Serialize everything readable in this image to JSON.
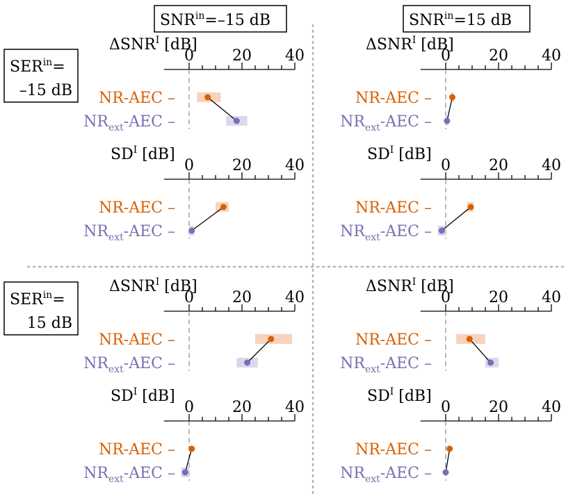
{
  "colors": {
    "nr_aec": "#d95f02",
    "nr_aec_band": "#f8d3bc",
    "nr_ext_aec": "#7570b3",
    "nr_ext_aec_band": "#d9d8ee",
    "separator": "#b3b3b3",
    "zero_line": "#888888"
  },
  "columns": [
    {
      "snr_prefix": "SNR",
      "snr_sup": "in",
      "snr_suffix": "=–15 dB"
    },
    {
      "snr_prefix": "SNR",
      "snr_sup": "in",
      "snr_suffix": "=15 dB"
    }
  ],
  "rows": [
    {
      "ser_prefix": "SER",
      "ser_sup": "in",
      "ser_eq": "=",
      "ser_value": "–15 dB"
    },
    {
      "ser_prefix": "SER",
      "ser_sup": "in",
      "ser_eq": "=",
      "ser_value": "15 dB"
    }
  ],
  "labels": {
    "dsnr_delta": "Δ",
    "dsnr_main": "SNR",
    "dsnr_sup": "I",
    "dsnr_unit": " [dB]",
    "sd_main": "SD",
    "sd_sup": "I",
    "sd_unit": " [dB]",
    "nr_aec": "NR-AEC –",
    "nr_ext_main": "NR",
    "nr_ext_sub": "ext",
    "nr_ext_rest": "-AEC –"
  },
  "chart_data": [
    {
      "type": "scatter",
      "row": "SER=–15 dB",
      "column": "SNR=–15 dB",
      "metrics": [
        {
          "metric": "ΔSNR^I [dB]",
          "xlim": [
            -5,
            40
          ],
          "ticks": [
            0,
            20,
            40
          ],
          "series": [
            {
              "name": "NR-AEC",
              "value": 7,
              "range": [
                3,
                12
              ]
            },
            {
              "name": "NR_ext-AEC",
              "value": 18,
              "range": [
                14,
                22
              ]
            }
          ]
        },
        {
          "metric": "SD^I [dB]",
          "xlim": [
            -5,
            40
          ],
          "ticks": [
            0,
            20,
            40
          ],
          "series": [
            {
              "name": "NR-AEC",
              "value": 13,
              "range": [
                10,
                15
              ]
            },
            {
              "name": "NR_ext-AEC",
              "value": 1,
              "range": [
                0,
                2
              ]
            }
          ]
        }
      ]
    },
    {
      "type": "scatter",
      "row": "SER=–15 dB",
      "column": "SNR=15 dB",
      "metrics": [
        {
          "metric": "ΔSNR^I [dB]",
          "xlim": [
            -5,
            40
          ],
          "ticks": [
            0,
            20,
            40
          ],
          "series": [
            {
              "name": "NR-AEC",
              "value": 2.5,
              "range": [
                2,
                3
              ]
            },
            {
              "name": "NR_ext-AEC",
              "value": 0.5,
              "range": [
                0,
                1
              ]
            }
          ]
        },
        {
          "metric": "SD^I [dB]",
          "xlim": [
            -5,
            40
          ],
          "ticks": [
            0,
            20,
            40
          ],
          "series": [
            {
              "name": "NR-AEC",
              "value": 9.5,
              "range": [
                8,
                10.5
              ]
            },
            {
              "name": "NR_ext-AEC",
              "value": -1.5,
              "range": [
                -3,
                0
              ]
            }
          ]
        }
      ]
    },
    {
      "type": "scatter",
      "row": "SER=15 dB",
      "column": "SNR=–15 dB",
      "metrics": [
        {
          "metric": "ΔSNR^I [dB]",
          "xlim": [
            -5,
            40
          ],
          "ticks": [
            0,
            20,
            40
          ],
          "series": [
            {
              "name": "NR-AEC",
              "value": 31,
              "range": [
                25,
                39
              ]
            },
            {
              "name": "NR_ext-AEC",
              "value": 22,
              "range": [
                18,
                26
              ]
            }
          ]
        },
        {
          "metric": "SD^I [dB]",
          "xlim": [
            -5,
            40
          ],
          "ticks": [
            0,
            20,
            40
          ],
          "series": [
            {
              "name": "NR-AEC",
              "value": 1,
              "range": [
                1,
                1
              ]
            },
            {
              "name": "NR_ext-AEC",
              "value": -1.5,
              "range": [
                -3,
                0
              ]
            }
          ]
        }
      ]
    },
    {
      "type": "scatter",
      "row": "SER=15 dB",
      "column": "SNR=15 dB",
      "metrics": [
        {
          "metric": "ΔSNR^I [dB]",
          "xlim": [
            -5,
            40
          ],
          "ticks": [
            0,
            20,
            40
          ],
          "series": [
            {
              "name": "NR-AEC",
              "value": 9,
              "range": [
                4,
                15
              ]
            },
            {
              "name": "NR_ext-AEC",
              "value": 17,
              "range": [
                15,
                20
              ]
            }
          ]
        },
        {
          "metric": "SD^I [dB]",
          "xlim": [
            -5,
            40
          ],
          "ticks": [
            0,
            20,
            40
          ],
          "series": [
            {
              "name": "NR-AEC",
              "value": 1.5,
              "range": [
                1.5,
                1.5
              ]
            },
            {
              "name": "NR_ext-AEC",
              "value": 0,
              "range": [
                0,
                0
              ]
            }
          ]
        }
      ]
    }
  ]
}
